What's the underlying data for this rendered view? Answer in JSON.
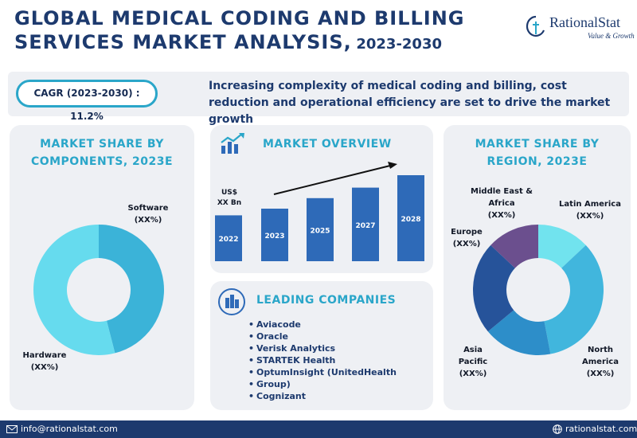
{
  "header": {
    "title_line1": "GLOBAL MEDICAL CODING AND BILLING",
    "title_line2": "SERVICES MARKET ANALYSIS,",
    "title_years": "2023-2030"
  },
  "logo": {
    "name": "RationalStat",
    "tagline": "Value & Growth"
  },
  "banner": {
    "cagr": "CAGR (2023-2030) : 11.2%",
    "headline": "Increasing complexity of medical coding and billing, cost reduction and operational efficiency are set to drive the market growth"
  },
  "components": {
    "title": "MARKET SHARE BY COMPONENTS, 2023E",
    "software_label": "Software",
    "software_value": "(XX%)",
    "hardware_label": "Hardware",
    "hardware_value": "(XX%)"
  },
  "overview": {
    "title": "MARKET OVERVIEW",
    "unit_line1": "US$",
    "unit_line2": "XX Bn"
  },
  "companies": {
    "title": "LEADING COMPANIES",
    "items": [
      "Aviacode",
      "Oracle",
      "Verisk Analytics",
      "STARTEK Health",
      "OptumInsight (UnitedHealth",
      "Group)",
      "Cognizant"
    ]
  },
  "region": {
    "title": "MARKET SHARE BY REGION, 2023E",
    "mea_line1": "Middle East &",
    "mea_line2": "Africa",
    "mea_value": "(XX%)",
    "latam_label": "Latin America",
    "latam_value": "(XX%)",
    "europe_label": "Europe",
    "europe_value": "(XX%)",
    "apac_line1": "Asia",
    "apac_line2": "Pacific",
    "apac_value": "(XX%)",
    "na_line1": "North",
    "na_line2": "America",
    "na_value": "(XX%)"
  },
  "footer": {
    "email": "info@rationalstat.com",
    "website": "rationalstat.com"
  },
  "colors": {
    "navy": "#1d3a6e",
    "teal": "#2aa6c9",
    "bar": "#2e6ab8",
    "software": "#3bb3d8",
    "hardware": "#66dbee"
  },
  "chart_data": [
    {
      "type": "pie",
      "title": "MARKET SHARE BY COMPONENTS, 2023E",
      "donut": true,
      "categories": [
        "Software",
        "Hardware"
      ],
      "values": [
        46,
        54
      ],
      "colors": [
        "#3bb3d8",
        "#66dbee"
      ]
    },
    {
      "type": "bar",
      "title": "MARKET OVERVIEW",
      "categories": [
        "2022",
        "2023",
        "2025",
        "2027",
        "2028"
      ],
      "values": [
        48,
        55,
        66,
        77,
        90
      ],
      "ylabel": "US$ XX Bn",
      "trend_arrow": true,
      "color": "#2e6ab8"
    },
    {
      "type": "pie",
      "title": "MARKET SHARE BY REGION, 2023E",
      "donut": true,
      "categories": [
        "Latin America",
        "North America",
        "Asia Pacific",
        "Europe",
        "Middle East & Africa"
      ],
      "values": [
        13,
        34,
        17,
        23,
        13
      ],
      "colors": [
        "#71e3ee",
        "#41b6dd",
        "#2d8ec9",
        "#26539a",
        "#6b4f8e"
      ]
    }
  ]
}
